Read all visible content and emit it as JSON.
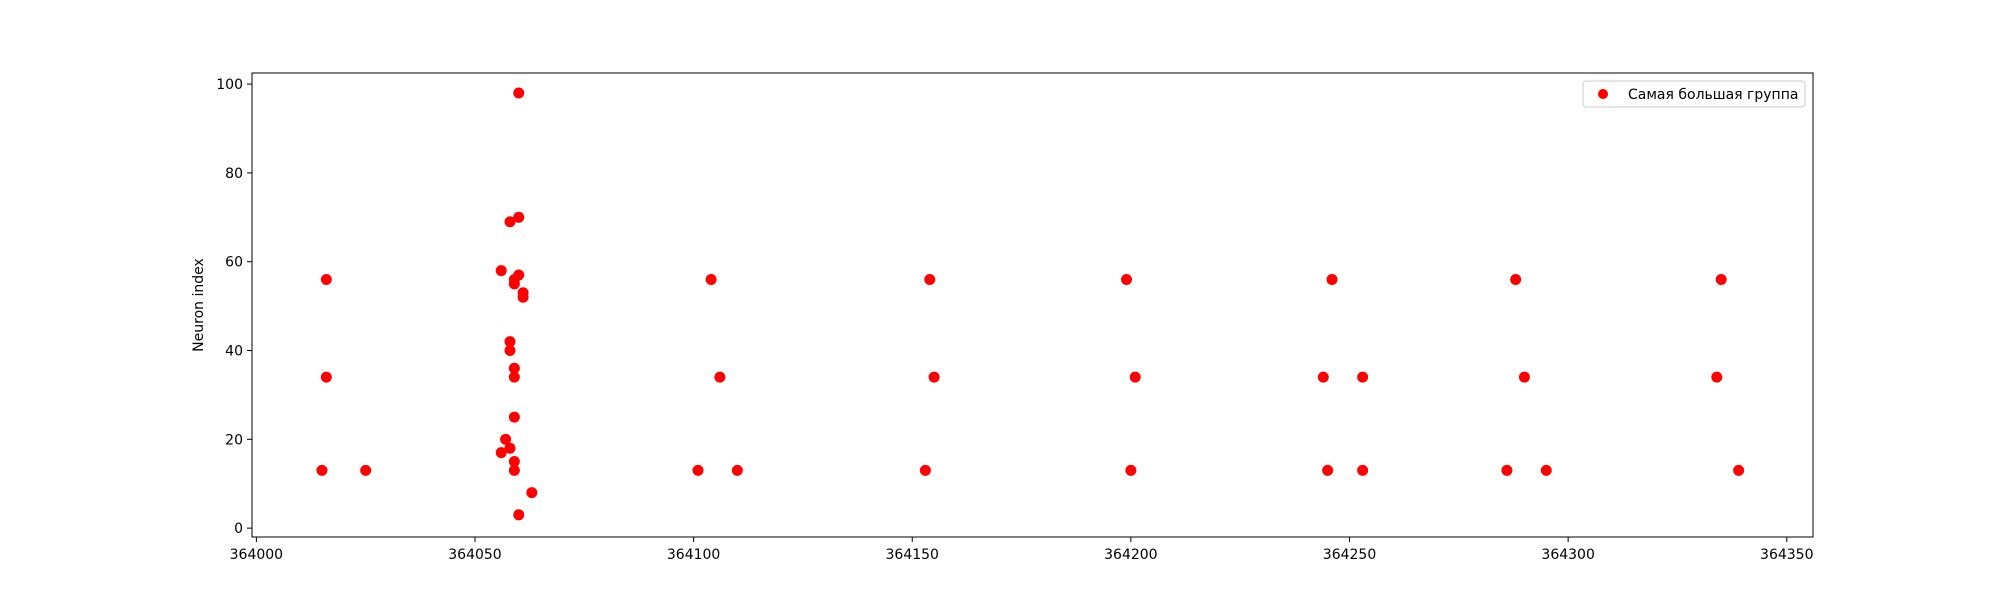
{
  "chart_data": {
    "type": "scatter",
    "title": "",
    "xlabel": "",
    "ylabel": "Neuron index",
    "xlim": [
      363999,
      364356
    ],
    "ylim": [
      -2,
      102.5
    ],
    "xticks": [
      364000,
      364050,
      364100,
      364150,
      364200,
      364250,
      364300,
      364350
    ],
    "yticks": [
      0,
      20,
      40,
      60,
      80,
      100
    ],
    "grid": false,
    "legend_position": "upper right",
    "series": [
      {
        "name": "Самая большая группа",
        "color": "#ff0000",
        "marker": "circle",
        "points": [
          [
            364015,
            13
          ],
          [
            364016,
            56
          ],
          [
            364016,
            34
          ],
          [
            364025,
            13
          ],
          [
            364056,
            58
          ],
          [
            364056,
            17
          ],
          [
            364057,
            20
          ],
          [
            364058,
            18
          ],
          [
            364058,
            40
          ],
          [
            364058,
            42
          ],
          [
            364058,
            69
          ],
          [
            364059,
            55
          ],
          [
            364059,
            56
          ],
          [
            364059,
            36
          ],
          [
            364059,
            34
          ],
          [
            364059,
            25
          ],
          [
            364059,
            13
          ],
          [
            364059,
            15
          ],
          [
            364060,
            57
          ],
          [
            364060,
            3
          ],
          [
            364060,
            70
          ],
          [
            364060,
            98
          ],
          [
            364061,
            52
          ],
          [
            364061,
            53
          ],
          [
            364063,
            8
          ],
          [
            364101,
            13
          ],
          [
            364104,
            56
          ],
          [
            364106,
            34
          ],
          [
            364110,
            13
          ],
          [
            364153,
            13
          ],
          [
            364154,
            56
          ],
          [
            364155,
            34
          ],
          [
            364199,
            56
          ],
          [
            364200,
            13
          ],
          [
            364201,
            34
          ],
          [
            364244,
            34
          ],
          [
            364245,
            13
          ],
          [
            364246,
            56
          ],
          [
            364253,
            34
          ],
          [
            364253,
            13
          ],
          [
            364286,
            13
          ],
          [
            364288,
            56
          ],
          [
            364290,
            34
          ],
          [
            364295,
            13
          ],
          [
            364334,
            34
          ],
          [
            364335,
            56
          ],
          [
            364339,
            13
          ]
        ]
      }
    ]
  }
}
